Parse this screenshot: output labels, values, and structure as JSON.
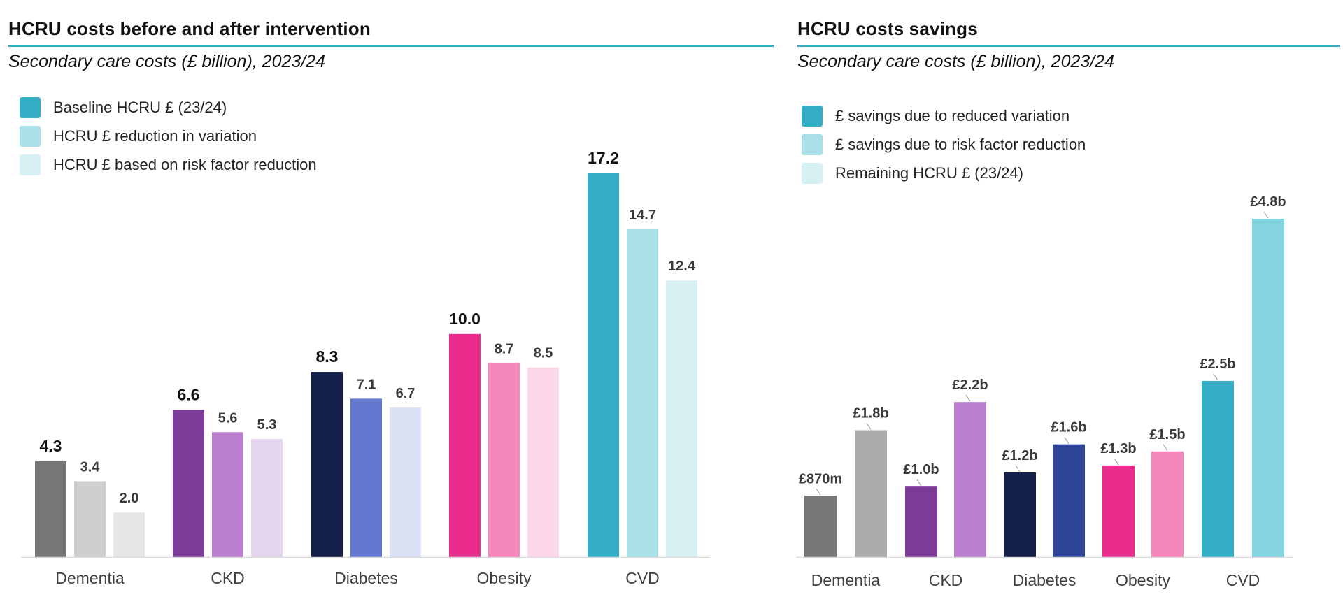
{
  "chart_data": [
    {
      "type": "bar",
      "title": "HCRU costs before and after intervention",
      "subtitle": "Secondary care costs (£ billion), 2023/24",
      "categories": [
        "Dementia",
        "CKD",
        "Diabetes",
        "Obesity",
        "CVD"
      ],
      "series": [
        {
          "name": "Baseline HCRU £ (23/24)",
          "values": [
            4.3,
            6.6,
            8.3,
            10.0,
            17.2
          ],
          "labels": [
            "4.3",
            "6.6",
            "8.3",
            "10.0",
            "17.2"
          ]
        },
        {
          "name": "HCRU £ reduction in variation",
          "values": [
            3.4,
            5.6,
            7.1,
            8.7,
            14.7
          ],
          "labels": [
            "3.4",
            "5.6",
            "7.1",
            "8.7",
            "14.7"
          ]
        },
        {
          "name": "HCRU £ based on risk factor reduction",
          "values": [
            2.0,
            5.3,
            6.7,
            8.5,
            12.4
          ],
          "labels": [
            "2.0",
            "5.3",
            "6.7",
            "8.5",
            "12.4"
          ]
        }
      ],
      "legend": [
        {
          "label": "Baseline HCRU £ (23/24)",
          "color": "#35aec5"
        },
        {
          "label": "HCRU £ reduction in variation",
          "color": "#a9dfe7"
        },
        {
          "label": "HCRU £ based on risk factor reduction",
          "color": "#d6f0f4"
        }
      ],
      "colors": [
        [
          "#767676",
          "#cfcfcf",
          "#e6e6e6"
        ],
        [
          "#7d3c98",
          "#b97fcc",
          "#e6d5ef"
        ],
        [
          "#16214a",
          "#6578cf",
          "#dde1f5"
        ],
        [
          "#ea2c8c",
          "#f487bb",
          "#fbd7e9"
        ],
        [
          "#35aec5",
          "#a9dfe7",
          "#d6f0f4"
        ]
      ],
      "ylim": [
        0,
        17.2
      ],
      "xlabel": "",
      "ylabel": "",
      "grid": false,
      "legend_position": "top-left"
    },
    {
      "type": "bar",
      "title": "HCRU costs savings",
      "subtitle": "Secondary care costs (£ billion), 2023/24",
      "categories": [
        "Dementia",
        "CKD",
        "Diabetes",
        "Obesity",
        "CVD"
      ],
      "series": [
        {
          "name": "£ savings due to reduced variation",
          "values": [
            0.87,
            1.0,
            1.2,
            1.3,
            2.5
          ],
          "labels": [
            "£870m",
            "£1.0b",
            "£1.2b",
            "£1.3b",
            "£2.5b"
          ]
        },
        {
          "name": "£ savings due to risk factor reduction",
          "values": [
            1.8,
            2.2,
            1.6,
            1.5,
            4.8
          ],
          "labels": [
            "£1.8b",
            "£2.2b",
            "£1.6b",
            "£1.5b",
            "£4.8b"
          ]
        }
      ],
      "legend": [
        {
          "label": "£ savings due to reduced variation",
          "color": "#35aec5"
        },
        {
          "label": "£ savings due to risk factor reduction",
          "color": "#a9dfe7"
        },
        {
          "label": "Remaining HCRU £ (23/24)",
          "color": "#d6f0f4"
        }
      ],
      "colors": [
        [
          "#767676",
          "#ababab"
        ],
        [
          "#7d3c98",
          "#b97fcc"
        ],
        [
          "#16214a",
          "#2e4595"
        ],
        [
          "#ea2c8c",
          "#f487bb"
        ],
        [
          "#35aec5",
          "#86d3e0"
        ]
      ],
      "ylim": [
        0,
        4.8
      ],
      "xlabel": "",
      "ylabel": "",
      "grid": false,
      "legend_position": "top-left"
    }
  ]
}
